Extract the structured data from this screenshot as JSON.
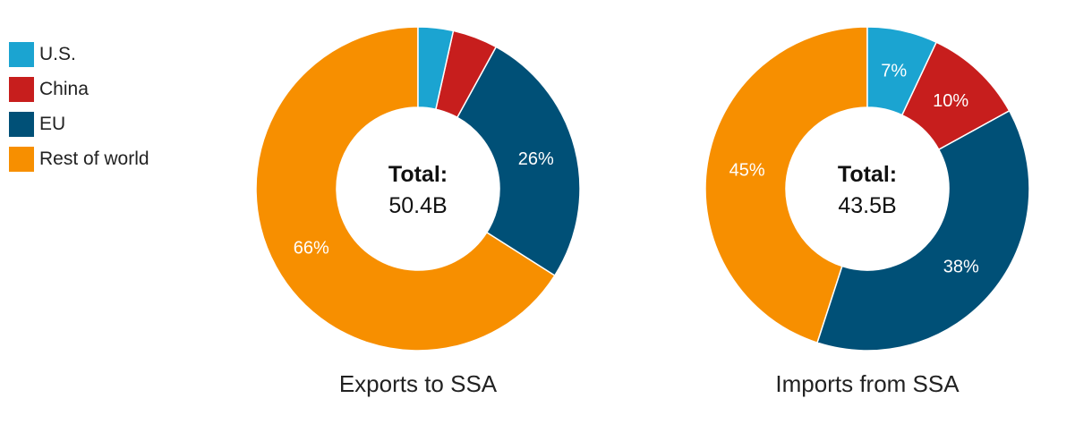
{
  "legend": [
    {
      "label": "U.S.",
      "color": "#1ba4d1"
    },
    {
      "label": "China",
      "color": "#c71e1d"
    },
    {
      "label": "EU",
      "color": "#005077"
    },
    {
      "label": "Rest of world",
      "color": "#f78f00"
    }
  ],
  "chart_data": [
    {
      "type": "pie",
      "title": "Exports to SSA",
      "center_title": "Total:",
      "center_value": "50.4B",
      "slices": [
        {
          "name": "U.S.",
          "value": 3.5,
          "label": ""
        },
        {
          "name": "China",
          "value": 4.5,
          "label": ""
        },
        {
          "name": "EU",
          "value": 26,
          "label": "26%"
        },
        {
          "name": "Rest of world",
          "value": 66,
          "label": "66%"
        }
      ]
    },
    {
      "type": "pie",
      "title": "Imports from SSA",
      "center_title": "Total:",
      "center_value": "43.5B",
      "slices": [
        {
          "name": "U.S.",
          "value": 7,
          "label": "7%"
        },
        {
          "name": "China",
          "value": 10,
          "label": "10%"
        },
        {
          "name": "EU",
          "value": 38,
          "label": "38%"
        },
        {
          "name": "Rest of world",
          "value": 45,
          "label": "45%"
        }
      ]
    }
  ]
}
